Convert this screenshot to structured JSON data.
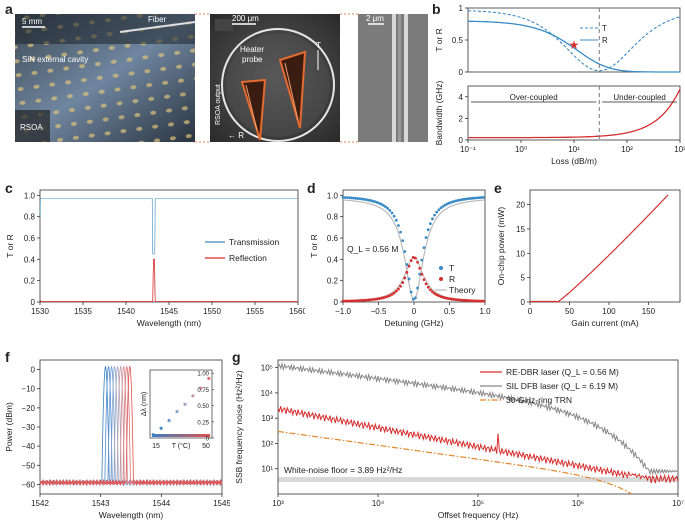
{
  "panels": {
    "a": "a",
    "b": "b",
    "c": "c",
    "d": "d",
    "e": "e",
    "f": "f",
    "g": "g"
  },
  "photo_a": {
    "scale1": "5 mm",
    "fiber": "Fiber",
    "cavity": "SiN external cavity",
    "rsoa": "RSOA",
    "scale2": "200 μm",
    "heater": "Heater",
    "probe": "probe",
    "rsoa_output": "RSOA output",
    "T": "T",
    "R": "← R",
    "scale3": "2 μm"
  },
  "colors": {
    "blue": "#3a8cc4",
    "red": "#d62f2f",
    "gray": "#888888",
    "orange": "#e0872a"
  },
  "chart_data": [
    {
      "id": "b_top",
      "type": "line",
      "ylabel": "T or R",
      "xscale": "log",
      "xlim": [
        0.1,
        1000
      ],
      "ylim": [
        0,
        1
      ],
      "yticks": [
        "0",
        "0.5",
        "1"
      ],
      "series": [
        {
          "name": "T"
        },
        {
          "name": "R"
        }
      ],
      "critical_loss": 30,
      "marker_loss": 10
    },
    {
      "id": "b_bottom",
      "type": "line",
      "xlabel": "Loss (dB/m)",
      "ylabel": "Bandwidth (GHz)",
      "xscale": "log",
      "xlim": [
        0.1,
        1000
      ],
      "ylim": [
        0,
        5
      ],
      "xticks": [
        "10⁻¹",
        "10⁰",
        "10¹",
        "10²",
        "10³"
      ],
      "yticks": [
        "0",
        "2",
        "4"
      ],
      "annotations": [
        "Over-coupled",
        "Under-coupled"
      ]
    },
    {
      "id": "c",
      "type": "line",
      "xlabel": "Wavelength (nm)",
      "ylabel": "T or R",
      "xlim": [
        1530,
        1560
      ],
      "ylim": [
        0,
        1.05
      ],
      "xticks": [
        "1530",
        "1535",
        "1540",
        "1545",
        "1550",
        "1555",
        "1560"
      ],
      "yticks": [
        "0",
        "0.2",
        "0.4",
        "0.6",
        "0.8",
        "1.0"
      ],
      "legend": [
        "Transmission",
        "Reflection"
      ],
      "resonance_nm": 1543.2
    },
    {
      "id": "d",
      "type": "scatter",
      "xlabel": "Detuning (GHz)",
      "ylabel": "T or R",
      "xlim": [
        -1,
        1
      ],
      "ylim": [
        0,
        1.05
      ],
      "xticks": [
        "−1.0",
        "−0.5",
        "0",
        "0.5",
        "1.0"
      ],
      "yticks": [
        "0",
        "0.2",
        "0.4",
        "0.6",
        "0.8",
        "1.0"
      ],
      "legend": [
        "T",
        "R",
        "Theory"
      ],
      "annotation": "Q_L = 0.56 M"
    },
    {
      "id": "e",
      "type": "line",
      "xlabel": "Gain current (mA)",
      "ylabel": "On-chip power (mW)",
      "xlim": [
        0,
        190
      ],
      "ylim": [
        0,
        23
      ],
      "xticks": [
        "0",
        "50",
        "100",
        "150"
      ],
      "yticks": [
        "0",
        "5",
        "10",
        "15",
        "20"
      ],
      "threshold_mA": 35,
      "x_end": 175,
      "y_end": 22
    },
    {
      "id": "f",
      "type": "line",
      "xlabel": "Wavelength (nm)",
      "ylabel": "Power (dBm)",
      "xlim": [
        1542,
        1545
      ],
      "ylim": [
        -65,
        5
      ],
      "xticks": [
        "1542",
        "1543",
        "1544",
        "1545"
      ],
      "yticks": [
        "−60",
        "−50",
        "−40",
        "−30",
        "−20",
        "−10",
        "0"
      ],
      "peaks_nm": [
        1543.08,
        1543.13,
        1543.18,
        1543.23,
        1543.28,
        1543.33,
        1543.38,
        1543.43,
        1543.48
      ],
      "inset": {
        "ylabel": "Δλ (nm)",
        "xlabel": "T (°C)",
        "x0": "15",
        "x1": "50",
        "yticks": [
          "0",
          "0.25",
          "0.50",
          "0.75",
          "1.00"
        ],
        "x": [
          15,
          20,
          25,
          30,
          35,
          40,
          45,
          50
        ],
        "y": [
          0.05,
          0.15,
          0.27,
          0.41,
          0.52,
          0.65,
          0.77,
          0.92
        ]
      }
    },
    {
      "id": "g",
      "type": "line",
      "xlabel": "Offset frequency (Hz)",
      "ylabel": "SSB frequency noise (Hz²/Hz)",
      "xscale": "log",
      "yscale": "log",
      "xlim": [
        1000,
        10000000
      ],
      "ylim": [
        1,
        200000
      ],
      "xticks": [
        "10³",
        "10⁴",
        "10⁵",
        "10⁶",
        "10⁷"
      ],
      "yticks": [
        "10¹",
        "10²",
        "10³",
        "10⁴",
        "10⁵"
      ],
      "legend": [
        "RE-DBR laser (Q_L = 0.56 M)",
        "SIL DFB laser (Q_L = 6.19 M)",
        "30-GHz-ring TRN"
      ],
      "annotation": "White-noise floor = 3.89 Hz²/Hz",
      "floor": 3.89
    }
  ]
}
